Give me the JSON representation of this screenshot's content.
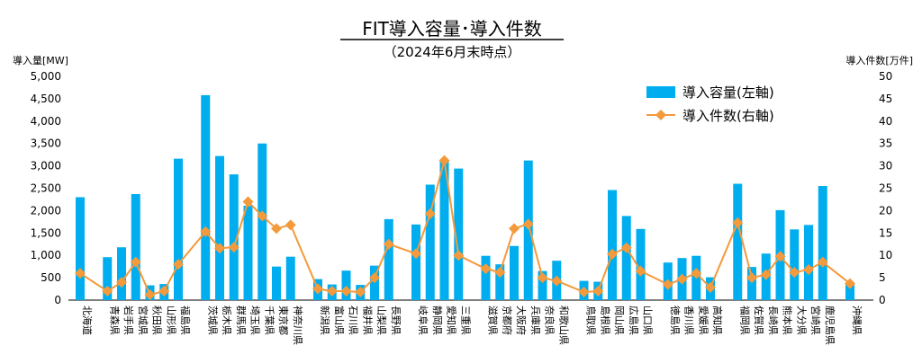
{
  "chart_data": {
    "type": "bar",
    "title": "FIT導入容量･導入件数",
    "subtitle": "（2024年6月末時点）",
    "y_left_label": "導入量[MW]",
    "y_right_label": "導入件数[万件]",
    "y_left_lim": [
      0,
      5000
    ],
    "y_left_ticks": [
      "0",
      "500",
      "1,000",
      "1,500",
      "2,000",
      "2,500",
      "3,000",
      "3,500",
      "4,000",
      "4,500",
      "5,000"
    ],
    "y_right_lim": [
      0,
      50
    ],
    "y_right_ticks": [
      "0",
      "5",
      "10",
      "15",
      "20",
      "25",
      "30",
      "35",
      "40",
      "45",
      "50"
    ],
    "legend_position": "top-right",
    "colors": {
      "bar": "#00AEEF",
      "line": "#F39A3C",
      "axis": "#000000"
    },
    "groups": [
      [
        "北海道"
      ],
      [
        "青森県",
        "岩手県",
        "宮城県",
        "秋田県",
        "山形県",
        "福島県"
      ],
      [
        "茨城県",
        "栃木県",
        "群馬県",
        "埼玉県",
        "千葉県",
        "東京都",
        "神奈川県"
      ],
      [
        "新潟県",
        "富山県",
        "石川県",
        "福井県",
        "山梨県",
        "長野県"
      ],
      [
        "岐阜県",
        "静岡県",
        "愛知県",
        "三重県"
      ],
      [
        "滋賀県",
        "京都府",
        "大阪府",
        "兵庫県",
        "奈良県",
        "和歌山県"
      ],
      [
        "鳥取県",
        "島根県",
        "岡山県",
        "広島県",
        "山口県"
      ],
      [
        "徳島県",
        "香川県",
        "愛媛県",
        "高知県"
      ],
      [
        "福岡県",
        "佐賀県",
        "長崎県",
        "熊本県",
        "大分県",
        "宮崎県",
        "鹿児島県"
      ],
      [
        "沖縄県"
      ]
    ],
    "series": [
      {
        "name": "導入容量(左軸)",
        "type": "bar",
        "axis": "left",
        "values": [
          2300,
          960,
          1180,
          2370,
          330,
          360,
          3160,
          4580,
          3220,
          2810,
          2110,
          3500,
          750,
          970,
          470,
          350,
          660,
          340,
          770,
          1810,
          1690,
          2580,
          3120,
          2940,
          990,
          800,
          1210,
          3120,
          650,
          880,
          430,
          410,
          2460,
          1880,
          1590,
          840,
          940,
          990,
          510,
          2600,
          740,
          1040,
          2010,
          1580,
          1680,
          2550,
          350
        ]
      },
      {
        "name": "導入件数(右軸)",
        "type": "line",
        "axis": "right",
        "values": [
          6.0,
          2.0,
          4.0,
          8.5,
          1.2,
          2.0,
          8.0,
          15.3,
          11.6,
          11.8,
          22.0,
          18.8,
          16.0,
          16.8,
          2.5,
          2.0,
          2.0,
          1.8,
          5.0,
          12.5,
          10.4,
          19.3,
          31.2,
          10.0,
          7.0,
          6.2,
          16.0,
          17.0,
          5.0,
          4.3,
          1.8,
          2.0,
          10.3,
          11.7,
          6.5,
          3.5,
          4.7,
          6.0,
          2.8,
          17.3,
          5.0,
          5.7,
          9.8,
          6.2,
          6.8,
          8.5,
          3.7
        ]
      }
    ]
  }
}
